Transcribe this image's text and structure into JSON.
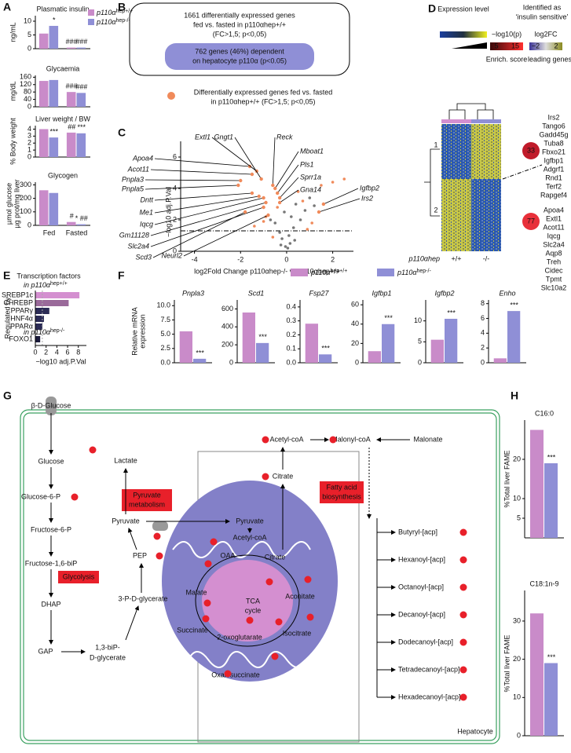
{
  "panels": {
    "A": {
      "letter": "A",
      "legend": [
        {
          "name": "p110α",
          "sup": "hep+/+",
          "color": "#c98bc9"
        },
        {
          "name": "p110α",
          "sup": "hep-/-",
          "color": "#8f8fd6"
        }
      ],
      "charts": [
        {
          "title": "Plasmatic insulin",
          "ylabel": "ng/mL",
          "ylim": [
            0,
            12
          ],
          "yticks": [
            0,
            5,
            10
          ],
          "series": [
            {
              "values": [
                5.5,
                0.4
              ],
              "annotations": [
                null,
                "###"
              ]
            },
            {
              "values": [
                8.3,
                0.4
              ],
              "annotations": [
                "*",
                "###"
              ]
            }
          ]
        },
        {
          "title": "Glycaemia",
          "ylabel": "mg/dL",
          "ylim": [
            0,
            170
          ],
          "yticks": [
            0,
            40,
            80,
            120,
            160
          ],
          "series": [
            {
              "values": [
                140,
                80
              ],
              "annotations": [
                null,
                "###"
              ]
            },
            {
              "values": [
                145,
                75
              ],
              "annotations": [
                null,
                "###"
              ]
            }
          ]
        },
        {
          "title": "Liver weight / BW",
          "ylabel": "% Body weight",
          "ylim": [
            0,
            4.5
          ],
          "yticks": [
            0,
            1,
            2,
            3,
            4
          ],
          "series": [
            {
              "values": [
                4.0,
                3.5
              ],
              "annotations": [
                null,
                "##"
              ]
            },
            {
              "values": [
                2.8,
                3.4
              ],
              "annotations": [
                "***",
                "***"
              ]
            }
          ]
        },
        {
          "title": "Glycogen",
          "ylabel": [
            "µmol glucose",
            "µg prot/mg liver"
          ],
          "categories": [
            "Fed",
            "Fasted"
          ],
          "ylim": [
            0,
            320
          ],
          "yticks": [
            0,
            100,
            200,
            300
          ],
          "series": [
            {
              "values": [
                260,
                25
              ],
              "annotations": [
                null,
                "#"
              ]
            },
            {
              "values": [
                240,
                8
              ],
              "annotations": [
                null,
                "* ##"
              ]
            }
          ]
        }
      ]
    },
    "B": {
      "letter": "B",
      "lines": [
        "1661 differentially expressed genes",
        "fed vs. fasted in p110αhep+/+",
        "(FC>1,5; p<0,05)"
      ],
      "inner": [
        "762 genes (46%) dependent",
        "on hepatocyte p110α (p<0.05)"
      ]
    },
    "C": {
      "letter": "C",
      "legend": [
        "Differentially expressed genes fed vs. fasted",
        "in p110αhep+/+ (FC>1,5; p<0,05)"
      ],
      "ylabel": "−log10 adj.P.Val",
      "xlabel": "log2Fold Change p110αhep-/- vs p110αhep+/+",
      "xlim": [
        -4.6,
        2.9
      ],
      "xticks": [
        -4,
        -2,
        0,
        2
      ],
      "ylim": [
        0,
        7
      ],
      "yticks": [
        0,
        2,
        4,
        6
      ],
      "threshold": 1.3,
      "points": [
        {
          "color": "#777777",
          "x": [
            -0.2,
            0.1,
            0.3,
            -0.5,
            0.6,
            -0.1,
            0.2,
            0.8,
            -0.7,
            0.4,
            1.0,
            -0.3,
            0.15,
            -0.25,
            1.2,
            0.05,
            -0.05,
            0.35
          ],
          "y": [
            0.8,
            1.0,
            1.5,
            1.8,
            2.0,
            2.5,
            2.2,
            2.6,
            2.0,
            3.0,
            3.4,
            1.2,
            0.5,
            0.4,
            2.9,
            0.2,
            0.3,
            0.7
          ]
        },
        {
          "color": "#f08a5a",
          "x": [
            -1.4,
            -0.6,
            0.9,
            0.5,
            1.5,
            2.0,
            2.5,
            -1.0,
            -0.4,
            0.7,
            -0.9,
            1.1
          ],
          "y": [
            1.6,
            0.9,
            1.4,
            3.8,
            4.2,
            4.4,
            4.6,
            1.9,
            2.8,
            3.2,
            2.2,
            1.8
          ]
        }
      ],
      "genes": {
        "names": [
          "Apoa4",
          "Acot11",
          "Pnpla3",
          "Pnpla5",
          "Dntt",
          "Me1",
          "Iqcg",
          "Gm11128",
          "Slc2a4",
          "Scd3",
          "Neurl2",
          "Extl1",
          "Gngt1",
          "Reck",
          "Mboat1",
          "Pls1",
          "Sprr1a",
          "Gna14",
          "Igfbp2",
          "Irs2"
        ],
        "x": [
          -1.6,
          -1.5,
          -2.0,
          -2.1,
          -1.5,
          -1.2,
          -1.0,
          -0.9,
          -1.0,
          -1.8,
          -0.8,
          -1.3,
          -1.1,
          -0.6,
          -0.5,
          -0.4,
          -0.3,
          -0.3,
          1.6,
          1.4
        ],
        "y": [
          5.4,
          4.9,
          4.5,
          4.2,
          3.7,
          3.5,
          3.4,
          3.1,
          2.8,
          2.5,
          2.3,
          5.1,
          4.6,
          4.2,
          4.0,
          3.7,
          3.4,
          3.1,
          3.0,
          2.5
        ],
        "color": "#f08a5a"
      }
    },
    "D": {
      "letter": "D",
      "expr": "Expression level",
      "ident": [
        "Identified as",
        "‘insulin sensitive’"
      ],
      "p_label": "−log10(p)",
      "fc_label": "log2FC",
      "p_ticks": [
        "5",
        "15"
      ],
      "fc_ticks": [
        "−2",
        "2"
      ],
      "enrich": "Enrich. score",
      "leading": "leading genes",
      "clusters": [
        "1",
        "2"
      ],
      "scores": [
        "33",
        "77"
      ],
      "genotype": "p110αhep",
      "groups": [
        "+/+",
        "-/-"
      ],
      "gene_sets": [
        {
          "names": [
            "Irs2",
            "Tango6",
            "Gadd45g",
            "Tuba8",
            "Fbxo21",
            "Igfbp1",
            "Adgrf1",
            "Rnd1",
            "Terf2",
            "Rapgef4"
          ],
          "colors": [
            "#3b3396",
            "#3f3799",
            "#4a42a0",
            "#4a42a0",
            "#8a84c8",
            "#3b3396",
            "#6a62b5",
            "#6a62b5",
            "#8a84c8",
            "#8a84c8"
          ]
        },
        {
          "names": [
            "Apoa4",
            "Extl1",
            "Acot11",
            "Iqcg",
            "Slc2a4",
            "Aqp8",
            "Treh",
            "Cidec",
            "Tpmt",
            "Slc10a2"
          ],
          "colors": [
            "#7a7a10",
            "#8a8a20",
            "#8a8a20",
            "#a8a850",
            "#7a7a10",
            "#7a7a10",
            "#8a8a20",
            "#8a8a20",
            "#b0b070",
            "#8a8a20"
          ]
        }
      ]
    },
    "E": {
      "letter": "E",
      "title": "Transcription factors",
      "side_label": "Regulated by",
      "xlabel": "−log10 adj.P.Val",
      "xlim": [
        0,
        9.5
      ],
      "xticks": [
        0,
        2,
        4,
        6,
        8
      ],
      "threshold": 1.3,
      "groups": [
        {
          "prefix": "in p110α",
          "sup": "hep+/+",
          "color": "#c98bc9",
          "categories": [
            "SREBP1c",
            "CHREBP",
            "PPARγ",
            "HNF4α",
            "PPARα"
          ],
          "values": [
            8.2,
            6.2,
            2.6,
            1.6,
            1.3
          ],
          "colors": [
            "#d48fd0",
            "#9a6a9a",
            "#2b2b55",
            "#2b2b55",
            "#2b2b55"
          ]
        },
        {
          "prefix": "in p110α",
          "sup": "hep-/-",
          "color": "#8f8fd6",
          "categories": [
            "FOXO1"
          ],
          "values": [
            0.9
          ],
          "colors": [
            "#1c1c3c"
          ]
        }
      ]
    },
    "F": {
      "letter": "F",
      "ylabel": [
        "Relative mRNA",
        "expression"
      ],
      "legend": [
        {
          "name": "p110α",
          "sup": "hep+/+",
          "color": "#c98bc9"
        },
        {
          "name": "p110α",
          "sup": "hep-/-",
          "color": "#8f8fd6"
        }
      ],
      "charts": [
        {
          "title": "Pnpla3",
          "ylim": [
            0,
            11
          ],
          "yticks": [
            {
              "value": 0,
              "label": "0.0"
            },
            2.5,
            {
              "value": 5,
              "label": "5.0"
            },
            7.5,
            {
              "value": 10,
              "label": "10.0"
            }
          ],
          "series": [
            {
              "values": [
                5.5
              ]
            },
            {
              "values": [
                0.7
              ],
              "annotations": [
                "***"
              ]
            }
          ]
        },
        {
          "title": "Scd1",
          "ylim": [
            0,
            700
          ],
          "yticks": [
            0,
            200,
            400,
            600
          ],
          "series": [
            {
              "values": [
                560
              ]
            },
            {
              "values": [
                220
              ],
              "annotations": [
                "***"
              ]
            }
          ]
        },
        {
          "title": "Fsp27",
          "ylim": [
            0,
            0.45
          ],
          "yticks": [
            {
              "value": 0,
              "label": "0.0"
            },
            0.1,
            0.2,
            0.3,
            0.4
          ],
          "series": [
            {
              "values": [
                0.28
              ]
            },
            {
              "values": [
                0.06
              ],
              "annotations": [
                "***"
              ]
            }
          ]
        },
        {
          "title": "Igfbp1",
          "ylim": [
            0,
            65
          ],
          "yticks": [
            0,
            20,
            40,
            60
          ],
          "series": [
            {
              "values": [
                12
              ]
            },
            {
              "values": [
                40
              ],
              "annotations": [
                "***"
              ]
            }
          ]
        },
        {
          "title": "Igfbp2",
          "ylim": [
            0,
            15
          ],
          "yticks": [
            0,
            5,
            10
          ],
          "series": [
            {
              "values": [
                5.5
              ]
            },
            {
              "values": [
                10.5
              ],
              "annotations": [
                "***"
              ]
            }
          ]
        },
        {
          "title": "Enho",
          "ylim": [
            0,
            8.5
          ],
          "yticks": [
            0,
            2,
            4,
            6,
            8
          ],
          "series": [
            {
              "values": [
                0.6
              ]
            },
            {
              "values": [
                7.0
              ],
              "annotations": [
                "***"
              ]
            }
          ]
        }
      ]
    },
    "G": {
      "letter": "G",
      "cell": "Hepatocyte",
      "metabolites": [
        "β-D-Glucose",
        "Glucose",
        "Glucose-6-P",
        "Fructose-6-P",
        "Fructose-1,6-biP",
        "DHAP",
        "GAP",
        "1,3-biP-",
        "D-glycerate",
        "3-P-D-glycerate",
        "PEP",
        "Pyruvate",
        "Lactate",
        "Acetyl-coA",
        "Citrate",
        "Malonyl-coA",
        "Malonate",
        "Pyruvate",
        "Acetyl-coA",
        "OAA",
        "Citrate",
        "Malate",
        "Aconitate",
        "Succinate",
        "Isocitrate",
        "2-oxoglutarate",
        "Oxalosuccinate"
      ],
      "acyl": [
        "Butyryl-[acp]",
        "Hexanoyl-[acp]",
        "Octanoyl-[acp]",
        "Decanoyl-[acp]",
        "Dodecanoyl-[acp]",
        "Tetradecanoyl-[acp]",
        "Hexadecanoyl-[acp]"
      ],
      "processes": [
        [
          "Pyruvate",
          "metabolism"
        ],
        [
          "Glycolysis"
        ],
        [
          "TCA",
          "cycle"
        ],
        [
          "Fatty acid",
          "biosynthesis"
        ]
      ]
    },
    "H": {
      "letter": "H",
      "ylabel": "%Total liver FAME",
      "charts": [
        {
          "title": "C16:0",
          "ylim": [
            0,
            30
          ],
          "yticks": [
            5,
            10,
            20
          ],
          "series": [
            {
              "values": [
                27.5
              ],
              "color": "#c98bc9"
            },
            {
              "values": [
                19
              ],
              "color": "#8f8fd6",
              "annotations": [
                "***"
              ]
            }
          ]
        },
        {
          "title": "C18:1n-9",
          "ylim": [
            0,
            38
          ],
          "yticks": [
            0,
            10,
            20,
            30
          ],
          "series": [
            {
              "values": [
                32
              ],
              "color": "#c98bc9"
            },
            {
              "values": [
                19
              ],
              "color": "#8f8fd6",
              "annotations": [
                "***"
              ]
            }
          ]
        }
      ]
    }
  }
}
